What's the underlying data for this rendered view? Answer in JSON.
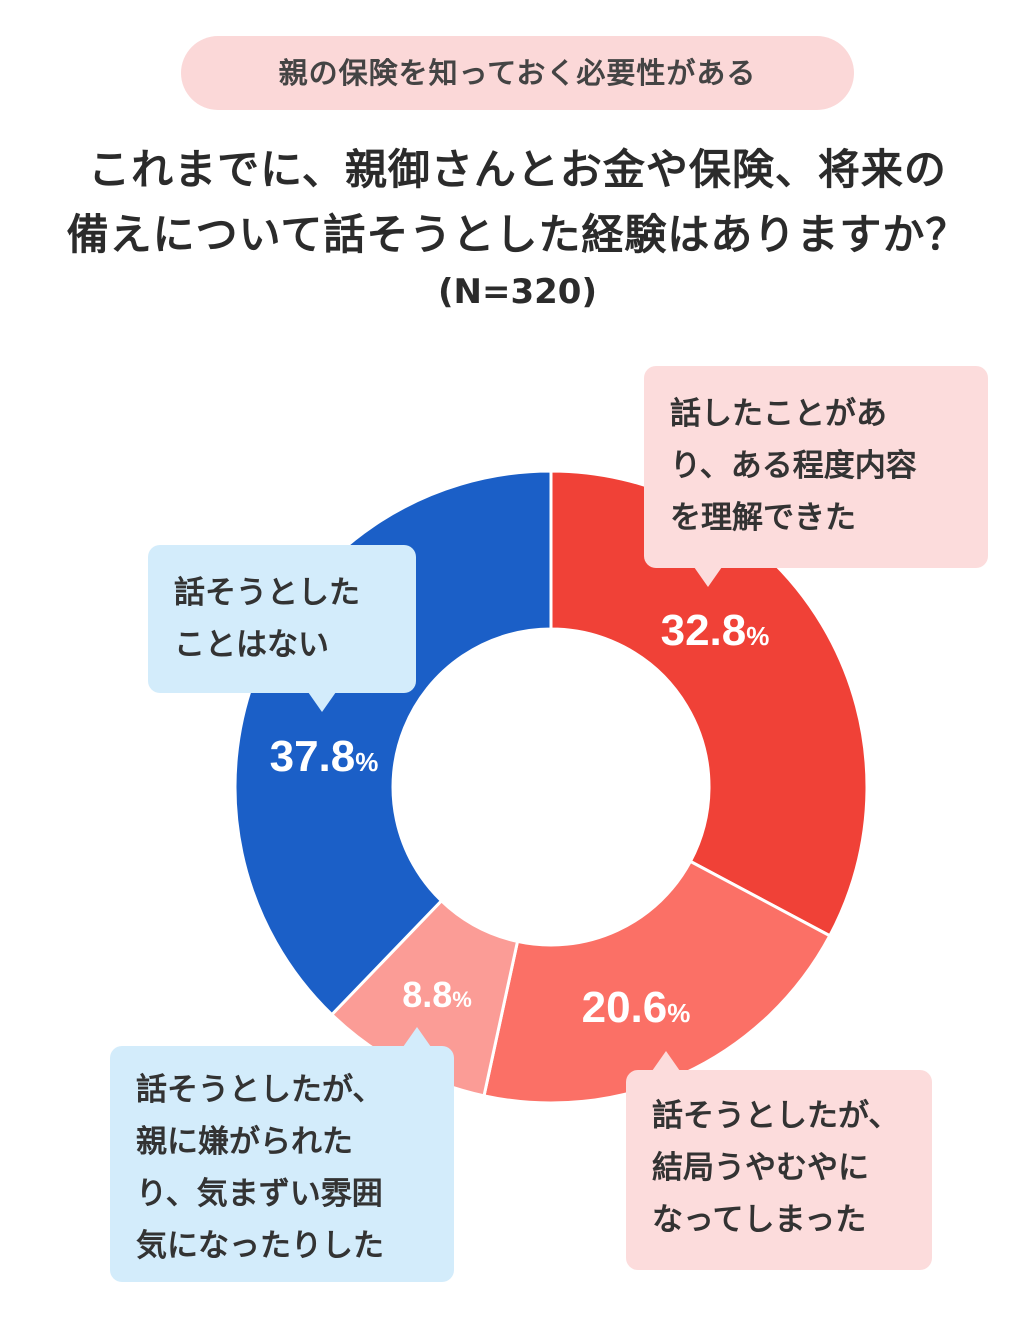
{
  "header": {
    "tag": "親の保険を知っておく必要性がある",
    "title_line1": "これまでに、親御さんとお金や保険、将来の",
    "title_line2": "備えについて話そうとした経験はありますか？",
    "sample": "(N=320)"
  },
  "chart_data": {
    "type": "pie",
    "subtype": "donut",
    "title": "これまでに、親御さんとお金や保険、将来の備えについて話そうとした経験はありますか？",
    "n": "(N=320)",
    "unit": "%",
    "slices": [
      {
        "label": "話したことがあり、ある程度内容を理解できた",
        "value": 32.8,
        "display": "32.8",
        "color": "#f04137"
      },
      {
        "label": "話そうとしたが、結局うやむやになってしまった",
        "value": 20.6,
        "display": "20.6",
        "color": "#fb7066"
      },
      {
        "label": "話そうとしたが、親に嫌がられたり、気まずい雰囲気になったりした",
        "value": 8.8,
        "display": "8.8",
        "color": "#fb9c96"
      },
      {
        "label": "話そうとしたことはない",
        "value": 37.8,
        "display": "37.8",
        "color": "#1b5fc7"
      }
    ]
  },
  "callouts": {
    "understood": "話したことがあ\nり、ある程度内容\nを理解できた",
    "vague": "話そうとしたが、\n結局うやむやに\nなってしまった",
    "disliked": "話そうとしたが、\n親に嫌がられた\nり、気まずい雰囲\n気になったりした",
    "never": "話そうとした\nことはない"
  }
}
